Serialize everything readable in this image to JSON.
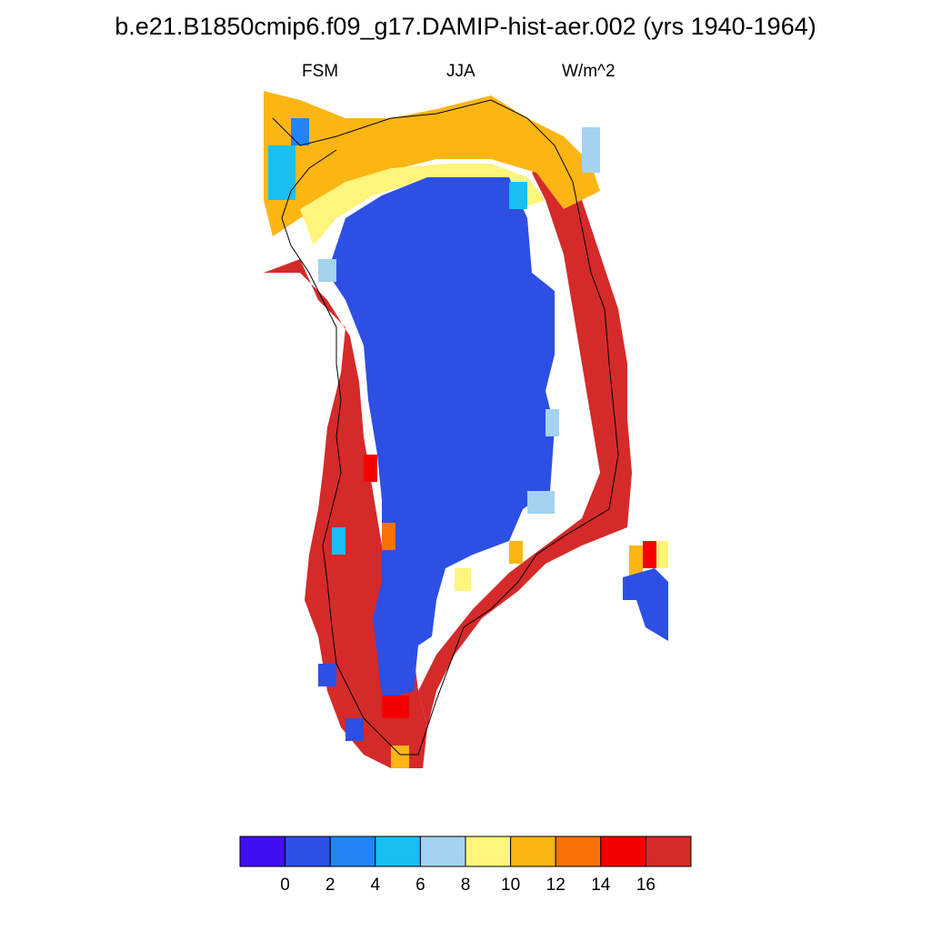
{
  "header": {
    "title": "b.e21.B1850cmip6.f09_g17.DAMIP-hist-aer.002 (yrs 1940-1964)",
    "left_label": "FSM",
    "center_label": "JJA",
    "right_label": "W/m^2"
  },
  "colorbar": {
    "colors": [
      "#3f0ff2",
      "#2d4fe4",
      "#2383f7",
      "#18bff3",
      "#a3d3ef",
      "#fff47c",
      "#fbb614",
      "#f97106",
      "#f50000",
      "#d42a2a"
    ],
    "tick_labels": [
      "0",
      "2",
      "4",
      "6",
      "8",
      "10",
      "12",
      "14",
      "16"
    ]
  },
  "map": {
    "description_free": true,
    "ocean_color": "#ffffff",
    "interior_color": "#2d4fe4"
  }
}
